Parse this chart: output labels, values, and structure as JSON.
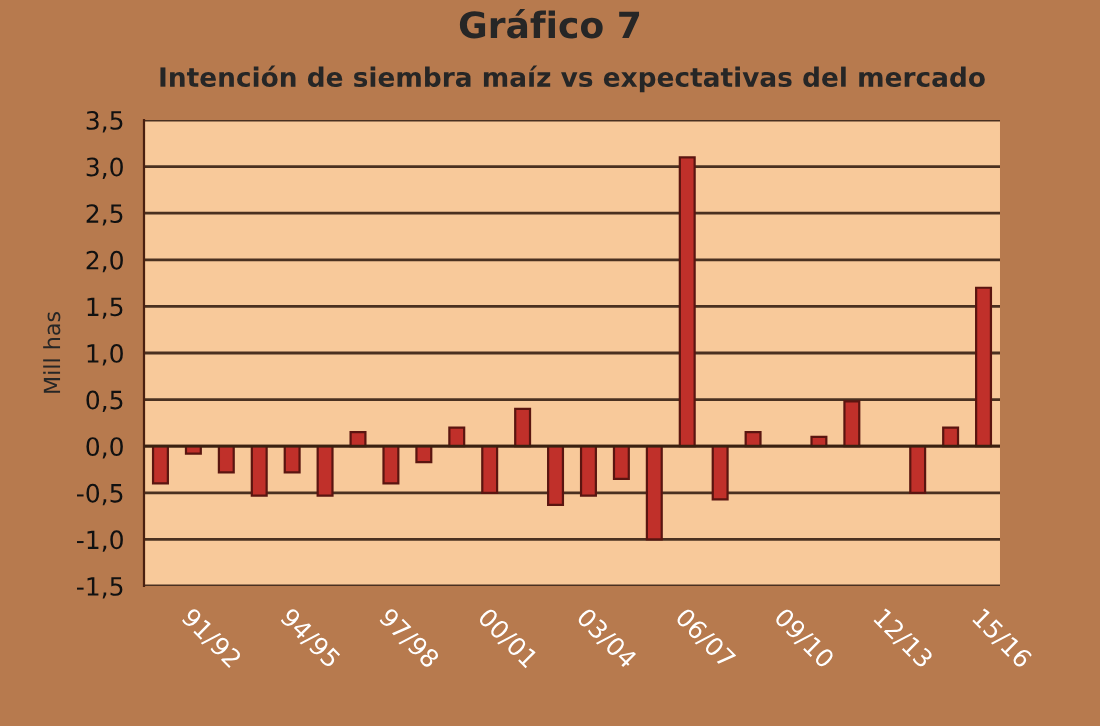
{
  "chart_data": {
    "type": "bar",
    "title": "Gráfico 7",
    "subtitle": "Intención de siembra maíz vs expectativas del mercado",
    "ylabel": "Mill has",
    "categories": [
      null,
      "91/92",
      null,
      null,
      "94/95",
      null,
      null,
      "97/98",
      null,
      null,
      "00/01",
      null,
      null,
      "03/04",
      null,
      null,
      "06/07",
      null,
      null,
      "09/10",
      null,
      null,
      "12/13",
      null,
      null,
      "15/16"
    ],
    "values": [
      -0.4,
      -0.08,
      -0.28,
      -0.53,
      -0.28,
      -0.53,
      0.15,
      -0.4,
      -0.17,
      0.2,
      -0.5,
      0.4,
      -0.63,
      -0.53,
      -0.35,
      -1.0,
      3.1,
      -0.57,
      0.15,
      null,
      0.1,
      0.48,
      null,
      -0.5,
      0.2,
      1.7
    ],
    "color": "#c0302a",
    "ylim": [
      -1.5,
      3.5
    ],
    "yticks": [
      {
        "value": -1.5,
        "label": "-1,5"
      },
      {
        "value": -1.0,
        "label": "-1,0"
      },
      {
        "value": -0.5,
        "label": "-0,5"
      },
      {
        "value": 0,
        "label": "0,0"
      },
      {
        "value": 0.5,
        "label": "0,5"
      },
      {
        "value": 1.0,
        "label": "1,0"
      },
      {
        "value": 1.5,
        "label": "1,5"
      },
      {
        "value": 2.0,
        "label": "2,0"
      },
      {
        "value": 2.5,
        "label": "2,5"
      },
      {
        "value": 3.0,
        "label": "3,0"
      },
      {
        "value": 3.5,
        "label": "3,5"
      }
    ],
    "grid": "y",
    "legend": false
  }
}
